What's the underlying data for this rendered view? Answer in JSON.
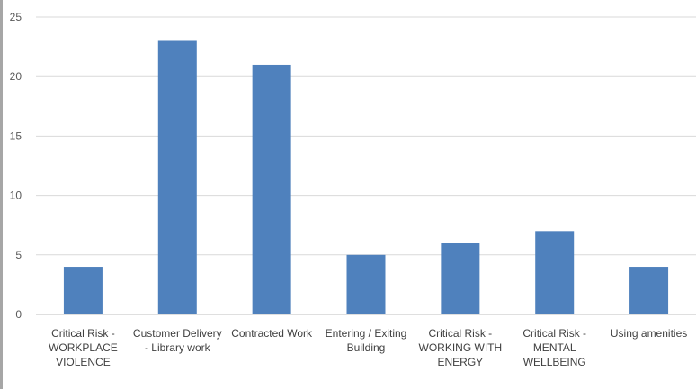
{
  "chart_data": {
    "type": "bar",
    "categories": [
      [
        "Critical Risk -",
        "WORKPLACE",
        "VIOLENCE"
      ],
      [
        "Customer Delivery",
        "- Library work"
      ],
      [
        "Contracted Work"
      ],
      [
        "Entering / Exiting",
        "Building"
      ],
      [
        "Critical Risk -",
        "WORKING WITH",
        "ENERGY"
      ],
      [
        "Critical Risk -",
        "MENTAL",
        "WELLBEING"
      ],
      [
        "Using amenities"
      ]
    ],
    "values": [
      4,
      23,
      21,
      5,
      6,
      7,
      4
    ],
    "yticks": [
      "0",
      "5",
      "10",
      "15",
      "20",
      "25"
    ],
    "ylim": [
      0,
      25
    ],
    "grid": true,
    "legend": "none",
    "bar_color": "#4f81bd",
    "grid_color": "#d9d9d9",
    "axis_color": "#bfbfbf"
  }
}
